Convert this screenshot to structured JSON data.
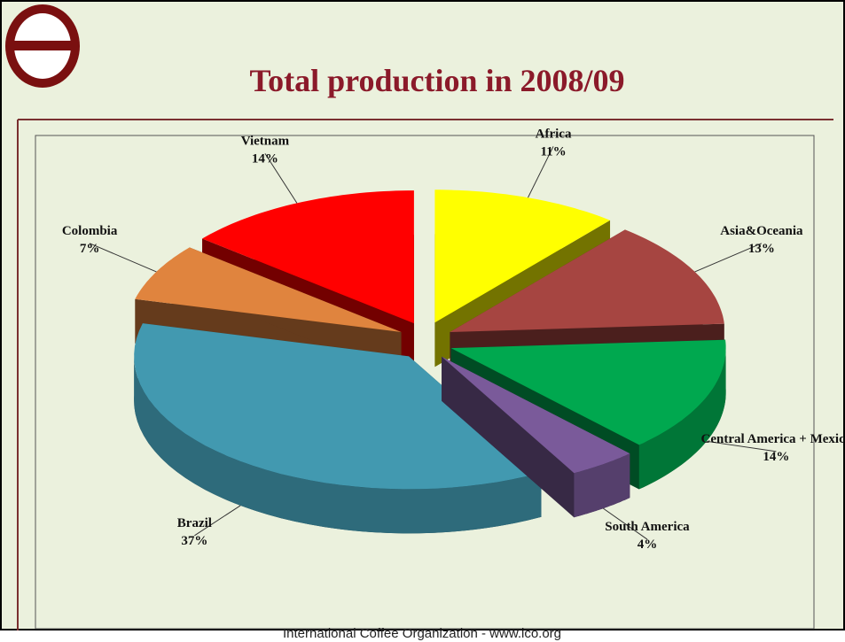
{
  "chart_data": {
    "type": "pie",
    "title": "Total production in 2008/09",
    "categories": [
      "Africa",
      "Asia&Oceania",
      "Central America + Mexico",
      "South America",
      "Brazil",
      "Colombia",
      "Vietnam"
    ],
    "values": [
      11,
      13,
      14,
      4,
      37,
      7,
      14
    ],
    "value_labels": [
      "11%",
      "13%",
      "14%",
      "4%",
      "37%",
      "7%",
      "14%"
    ],
    "colors": [
      "#ffff00",
      "#a64541",
      "#00a84f",
      "#7a5a9a",
      "#4299b0",
      "#e0843e",
      "#ff0000"
    ],
    "exploded": true,
    "three_d": true
  },
  "footer": "International Coffee Organization  -  www.ico.org"
}
